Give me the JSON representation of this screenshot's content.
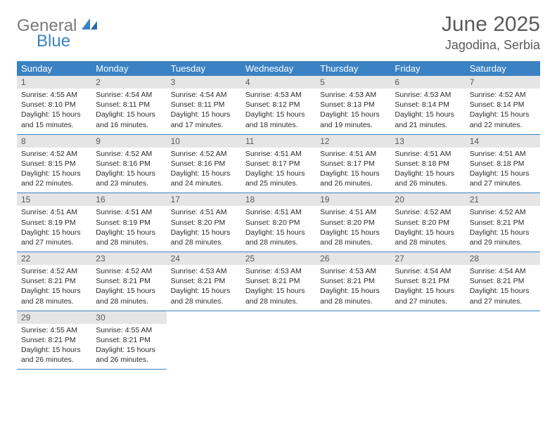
{
  "logo": {
    "text1": "General",
    "text2": "Blue",
    "color_gray": "#7a7a7a",
    "color_blue": "#3b82c4"
  },
  "title": "June 2025",
  "location": "Jagodina, Serbia",
  "header_bg": "#3b82c4",
  "header_fg": "#ffffff",
  "daynum_bg": "#e5e5e5",
  "daynum_fg": "#5a5a5a",
  "rule_color": "#3b82c4",
  "text_color": "#2b2b2b",
  "font_family": "Arial",
  "title_fontsize_pt": 22,
  "location_fontsize_pt": 14,
  "header_fontsize_pt": 10,
  "daynum_fontsize_pt": 9,
  "body_fontsize_pt": 8,
  "days_of_week": [
    "Sunday",
    "Monday",
    "Tuesday",
    "Wednesday",
    "Thursday",
    "Friday",
    "Saturday"
  ],
  "weeks": [
    [
      {
        "n": "1",
        "sunrise": "4:55 AM",
        "sunset": "8:10 PM",
        "daylight": "15 hours and 15 minutes."
      },
      {
        "n": "2",
        "sunrise": "4:54 AM",
        "sunset": "8:11 PM",
        "daylight": "15 hours and 16 minutes."
      },
      {
        "n": "3",
        "sunrise": "4:54 AM",
        "sunset": "8:11 PM",
        "daylight": "15 hours and 17 minutes."
      },
      {
        "n": "4",
        "sunrise": "4:53 AM",
        "sunset": "8:12 PM",
        "daylight": "15 hours and 18 minutes."
      },
      {
        "n": "5",
        "sunrise": "4:53 AM",
        "sunset": "8:13 PM",
        "daylight": "15 hours and 19 minutes."
      },
      {
        "n": "6",
        "sunrise": "4:53 AM",
        "sunset": "8:14 PM",
        "daylight": "15 hours and 21 minutes."
      },
      {
        "n": "7",
        "sunrise": "4:52 AM",
        "sunset": "8:14 PM",
        "daylight": "15 hours and 22 minutes."
      }
    ],
    [
      {
        "n": "8",
        "sunrise": "4:52 AM",
        "sunset": "8:15 PM",
        "daylight": "15 hours and 22 minutes."
      },
      {
        "n": "9",
        "sunrise": "4:52 AM",
        "sunset": "8:16 PM",
        "daylight": "15 hours and 23 minutes."
      },
      {
        "n": "10",
        "sunrise": "4:52 AM",
        "sunset": "8:16 PM",
        "daylight": "15 hours and 24 minutes."
      },
      {
        "n": "11",
        "sunrise": "4:51 AM",
        "sunset": "8:17 PM",
        "daylight": "15 hours and 25 minutes."
      },
      {
        "n": "12",
        "sunrise": "4:51 AM",
        "sunset": "8:17 PM",
        "daylight": "15 hours and 26 minutes."
      },
      {
        "n": "13",
        "sunrise": "4:51 AM",
        "sunset": "8:18 PM",
        "daylight": "15 hours and 26 minutes."
      },
      {
        "n": "14",
        "sunrise": "4:51 AM",
        "sunset": "8:18 PM",
        "daylight": "15 hours and 27 minutes."
      }
    ],
    [
      {
        "n": "15",
        "sunrise": "4:51 AM",
        "sunset": "8:19 PM",
        "daylight": "15 hours and 27 minutes."
      },
      {
        "n": "16",
        "sunrise": "4:51 AM",
        "sunset": "8:19 PM",
        "daylight": "15 hours and 28 minutes."
      },
      {
        "n": "17",
        "sunrise": "4:51 AM",
        "sunset": "8:20 PM",
        "daylight": "15 hours and 28 minutes."
      },
      {
        "n": "18",
        "sunrise": "4:51 AM",
        "sunset": "8:20 PM",
        "daylight": "15 hours and 28 minutes."
      },
      {
        "n": "19",
        "sunrise": "4:51 AM",
        "sunset": "8:20 PM",
        "daylight": "15 hours and 28 minutes."
      },
      {
        "n": "20",
        "sunrise": "4:52 AM",
        "sunset": "8:20 PM",
        "daylight": "15 hours and 28 minutes."
      },
      {
        "n": "21",
        "sunrise": "4:52 AM",
        "sunset": "8:21 PM",
        "daylight": "15 hours and 29 minutes."
      }
    ],
    [
      {
        "n": "22",
        "sunrise": "4:52 AM",
        "sunset": "8:21 PM",
        "daylight": "15 hours and 28 minutes."
      },
      {
        "n": "23",
        "sunrise": "4:52 AM",
        "sunset": "8:21 PM",
        "daylight": "15 hours and 28 minutes."
      },
      {
        "n": "24",
        "sunrise": "4:53 AM",
        "sunset": "8:21 PM",
        "daylight": "15 hours and 28 minutes."
      },
      {
        "n": "25",
        "sunrise": "4:53 AM",
        "sunset": "8:21 PM",
        "daylight": "15 hours and 28 minutes."
      },
      {
        "n": "26",
        "sunrise": "4:53 AM",
        "sunset": "8:21 PM",
        "daylight": "15 hours and 28 minutes."
      },
      {
        "n": "27",
        "sunrise": "4:54 AM",
        "sunset": "8:21 PM",
        "daylight": "15 hours and 27 minutes."
      },
      {
        "n": "28",
        "sunrise": "4:54 AM",
        "sunset": "8:21 PM",
        "daylight": "15 hours and 27 minutes."
      }
    ],
    [
      {
        "n": "29",
        "sunrise": "4:55 AM",
        "sunset": "8:21 PM",
        "daylight": "15 hours and 26 minutes."
      },
      {
        "n": "30",
        "sunrise": "4:55 AM",
        "sunset": "8:21 PM",
        "daylight": "15 hours and 26 minutes."
      },
      null,
      null,
      null,
      null,
      null
    ]
  ],
  "labels": {
    "sunrise": "Sunrise:",
    "sunset": "Sunset:",
    "daylight": "Daylight:"
  }
}
